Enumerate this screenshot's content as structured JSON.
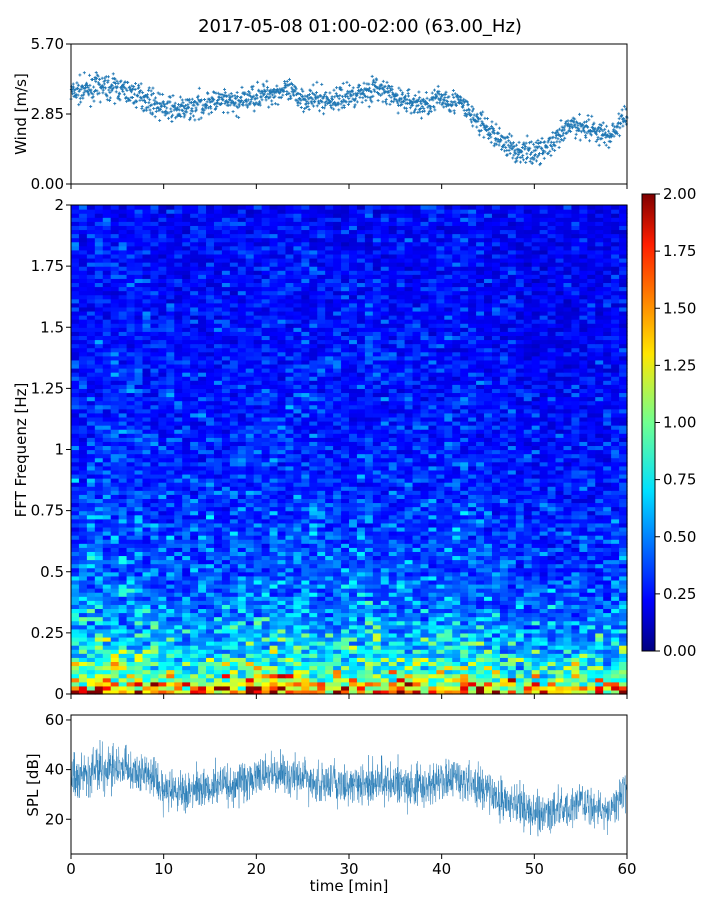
{
  "figure": {
    "title": "2017-05-08 01:00-02:00 (63.00_Hz)"
  },
  "chart_data": [
    {
      "type": "scatter",
      "panel": "wind",
      "ylabel": "Wind [m/s]",
      "xlim": [
        0,
        60
      ],
      "ylim": [
        0,
        5.7
      ],
      "yticks": [
        "0.00",
        "2.85",
        "5.70"
      ],
      "marker_color": "#1f77b4",
      "trend": {
        "x": [
          0,
          3,
          5,
          8,
          10,
          12,
          15,
          18,
          20,
          23,
          25,
          28,
          30,
          33,
          35,
          38,
          40,
          42,
          44,
          46,
          48,
          50,
          52,
          54,
          56,
          58,
          60
        ],
        "y": [
          3.7,
          3.95,
          3.9,
          3.5,
          3.1,
          3.0,
          3.35,
          3.3,
          3.6,
          3.8,
          3.5,
          3.4,
          3.6,
          3.9,
          3.5,
          3.2,
          3.5,
          3.3,
          2.5,
          1.9,
          1.35,
          1.3,
          1.6,
          2.4,
          2.3,
          1.9,
          2.8
        ]
      },
      "spread": 0.45
    },
    {
      "type": "heatmap",
      "panel": "spectrogram",
      "ylabel": "FFT Frequenz [Hz]",
      "xlim": [
        0,
        60
      ],
      "ylim": [
        0,
        2
      ],
      "yticks": [
        "0",
        "0.25",
        "0.5",
        "0.75",
        "1",
        "1.25",
        "1.5",
        "1.75",
        "2"
      ],
      "colormap": "jet",
      "color_range": [
        0,
        2
      ],
      "colorbar_ticks": [
        "0.00",
        "0.25",
        "0.50",
        "0.75",
        "1.00",
        "1.25",
        "1.50",
        "1.75",
        "2.00"
      ],
      "mean_profile": {
        "freq": [
          0,
          0.05,
          0.1,
          0.2,
          0.3,
          0.5,
          0.75,
          1.0,
          1.5,
          2.0
        ],
        "value": [
          1.8,
          1.25,
          0.95,
          0.72,
          0.58,
          0.45,
          0.38,
          0.34,
          0.3,
          0.27
        ]
      }
    },
    {
      "type": "line",
      "panel": "spl",
      "ylabel": "SPL [dB]",
      "xlabel": "time [min]",
      "xlim": [
        0,
        60
      ],
      "ylim": [
        6,
        62
      ],
      "yticks": [
        "20",
        "40",
        "60"
      ],
      "xticks": [
        "0",
        "10",
        "20",
        "30",
        "40",
        "50",
        "60"
      ],
      "line_color": "#1f77b4",
      "trend": {
        "x": [
          0,
          3,
          5,
          8,
          10,
          12,
          15,
          18,
          20,
          22,
          25,
          28,
          30,
          33,
          35,
          38,
          40,
          42,
          45,
          48,
          50,
          52,
          55,
          58,
          60
        ],
        "y": [
          38,
          40,
          42,
          38,
          33,
          31,
          33,
          35,
          37,
          38,
          37,
          34,
          33,
          36,
          34,
          33,
          35,
          36,
          31,
          26,
          22,
          24,
          26,
          23,
          34
        ]
      },
      "spread": 6
    }
  ]
}
